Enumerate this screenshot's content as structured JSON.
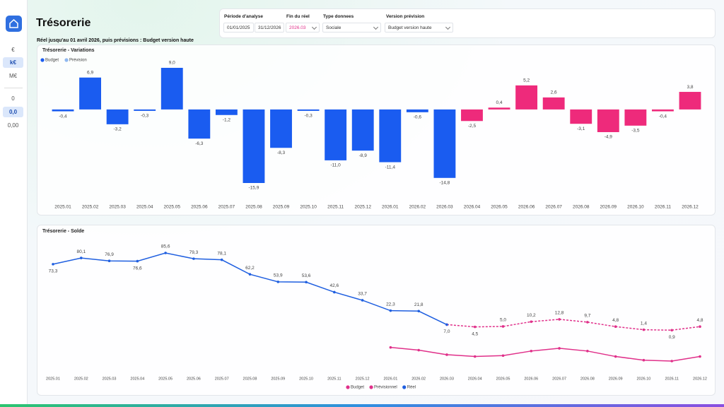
{
  "sidebar": {
    "units": [
      "€",
      "k€",
      "M€"
    ],
    "decimals": [
      "0",
      "0,0",
      "0,00"
    ]
  },
  "header": {
    "title": "Trésorerie",
    "subtitle": "Réel jusqu'au 01 avril 2026, puis prévisions : Budget version haute"
  },
  "filters": [
    {
      "label": "Période d'analyse",
      "values": [
        "01/01/2025",
        "31/12/2026"
      ]
    },
    {
      "label": "Fin du réel",
      "values": [
        "2026.03"
      ]
    },
    {
      "label": "Type donnees",
      "values": [
        "Sociale"
      ]
    },
    {
      "label": "Version prévision",
      "values": [
        "Budget version haute"
      ]
    }
  ],
  "chart_data": [
    {
      "type": "bar",
      "title": "Trésorerie - Variations",
      "legend": [
        {
          "name": "Budget",
          "color": "#1a5cf0"
        },
        {
          "name": "Prévision",
          "color": "#8fb8f0"
        }
      ],
      "categories": [
        "2025.01",
        "2025.02",
        "2025.03",
        "2025.04",
        "2025.05",
        "2025.06",
        "2025.07",
        "2025.08",
        "2025.09",
        "2025.10",
        "2025.11",
        "2025.12",
        "2026.01",
        "2026.02",
        "2026.03",
        "2026.04",
        "2026.05",
        "2026.06",
        "2026.07",
        "2026.08",
        "2026.09",
        "2026.10",
        "2026.11",
        "2026.12"
      ],
      "values": [
        -0.4,
        6.9,
        -3.2,
        -0.3,
        9.0,
        -6.3,
        -1.2,
        -15.9,
        -8.3,
        -0.3,
        -11.0,
        -8.9,
        -11.4,
        -0.6,
        -14.8,
        -2.5,
        0.4,
        5.2,
        2.6,
        -3.1,
        -4.9,
        -3.5,
        -0.4,
        3.8
      ],
      "value_labels": [
        "-0,4",
        "6,9",
        "-3,2",
        "-0,3",
        "9,0",
        "-6,3",
        "-1,2",
        "-15,9",
        "-8,3",
        "-0,3",
        "-11,0",
        "-8,9",
        "-11,4",
        "-0,6",
        "-14,8",
        "-2,5",
        "0,4",
        "5,2",
        "2,6",
        "-3,1",
        "-4,9",
        "-3,5",
        "-0,4",
        "3,8"
      ],
      "colors": [
        "#1a5cf0",
        "#1a5cf0",
        "#1a5cf0",
        "#1a5cf0",
        "#1a5cf0",
        "#1a5cf0",
        "#1a5cf0",
        "#1a5cf0",
        "#1a5cf0",
        "#1a5cf0",
        "#1a5cf0",
        "#1a5cf0",
        "#1a5cf0",
        "#1a5cf0",
        "#1a5cf0",
        "#ee2a7b",
        "#ee2a7b",
        "#ee2a7b",
        "#ee2a7b",
        "#ee2a7b",
        "#ee2a7b",
        "#ee2a7b",
        "#ee2a7b",
        "#ee2a7b"
      ]
    },
    {
      "type": "line",
      "title": "Trésorerie - Solde",
      "categories": [
        "2025.01",
        "2025.02",
        "2025.03",
        "2025.04",
        "2025.05",
        "2025.06",
        "2025.07",
        "2025.08",
        "2025.09",
        "2025.10",
        "2025.11",
        "2025.12",
        "2026.01",
        "2026.02",
        "2026.03",
        "2026.04",
        "2026.05",
        "2026.06",
        "2026.07",
        "2026.08",
        "2026.09",
        "2026.10",
        "2026.11",
        "2026.12"
      ],
      "series": [
        {
          "name": "Budget",
          "color": "#e0308a",
          "dashed": false,
          "values": [
            null,
            null,
            null,
            null,
            null,
            null,
            null,
            null,
            null,
            null,
            null,
            null,
            -18,
            -21,
            -26,
            -28,
            -27,
            -22,
            -19,
            -22,
            -28,
            -32,
            -33,
            -28
          ]
        },
        {
          "name": "Prévisionnel",
          "color": "#e0308a",
          "dashed": true,
          "values": [
            null,
            null,
            null,
            null,
            null,
            null,
            null,
            null,
            null,
            null,
            null,
            null,
            null,
            null,
            7.0,
            4.5,
            5.0,
            10.2,
            12.8,
            9.7,
            4.8,
            1.4,
            0.9,
            4.8
          ],
          "value_labels": [
            null,
            null,
            null,
            null,
            null,
            null,
            null,
            null,
            null,
            null,
            null,
            null,
            null,
            null,
            null,
            "4,5",
            "5,0",
            "10,2",
            "12,8",
            "9,7",
            "4,8",
            "1,4",
            "0,9",
            "4,8"
          ]
        },
        {
          "name": "Réel",
          "color": "#1f5fe0",
          "dashed": false,
          "values": [
            73.3,
            80.1,
            76.9,
            76.6,
            85.6,
            79.3,
            78.1,
            62.2,
            53.9,
            53.6,
            42.6,
            33.7,
            22.3,
            21.8,
            7.0,
            null,
            null,
            null,
            null,
            null,
            null,
            null,
            null,
            null
          ],
          "value_labels": [
            "73,3",
            "80,1",
            "76,9",
            "76,6",
            "85,6",
            "79,3",
            "78,1",
            "62,2",
            "53,9",
            "53,6",
            "42,6",
            "33,7",
            "22,3",
            "21,8",
            "7,0",
            null,
            null,
            null,
            null,
            null,
            null,
            null,
            null,
            null
          ]
        }
      ]
    }
  ]
}
